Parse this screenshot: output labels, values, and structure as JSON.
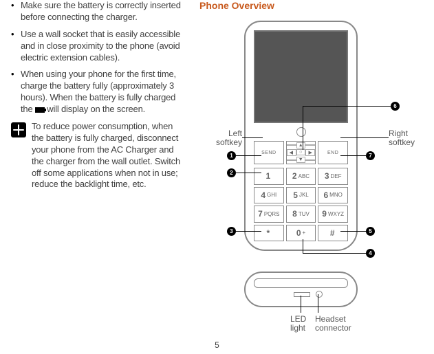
{
  "bullets": [
    "Make sure the battery is correctly inserted before connecting the charger.",
    "Use a wall socket that is easily accessible and in close proximity to the phone (avoid electric extension cables).",
    "When using your phone for the first time, charge the battery fully (approximately 3 hours). When the battery is fully charged the |BATT| will display on the screen."
  ],
  "tip": "To reduce power consumption, when the battery is fully charged, disconnect your phone from the AC Charger and the charger from the wall outlet. Switch off some applications when not in use; reduce the backlight time, etc.",
  "heading": "Phone Overview",
  "page_number": "5",
  "callouts": {
    "left_softkey": "Left\nsoftkey",
    "right_softkey": "Right\nsoftkey",
    "led": "LED\nlight",
    "headset": "Headset\nconnector"
  },
  "numbered": [
    "1",
    "2",
    "3",
    "4",
    "5",
    "6",
    "7"
  ],
  "keypad": [
    [
      "1",
      ""
    ],
    [
      "2",
      "ABC"
    ],
    [
      "3",
      "DEF"
    ],
    [
      "4",
      "GHI"
    ],
    [
      "5",
      "JKL"
    ],
    [
      "6",
      "MNO"
    ],
    [
      "7",
      "PQRS"
    ],
    [
      "8",
      "TUV"
    ],
    [
      "9",
      "WXYZ"
    ],
    [
      "*",
      ""
    ],
    [
      "0",
      "+"
    ],
    [
      "#",
      ""
    ]
  ],
  "softkeys": {
    "send": "SEND",
    "end": "END"
  },
  "colors": {
    "heading": "#c85a1e",
    "text": "#404040",
    "line": "#888888"
  }
}
